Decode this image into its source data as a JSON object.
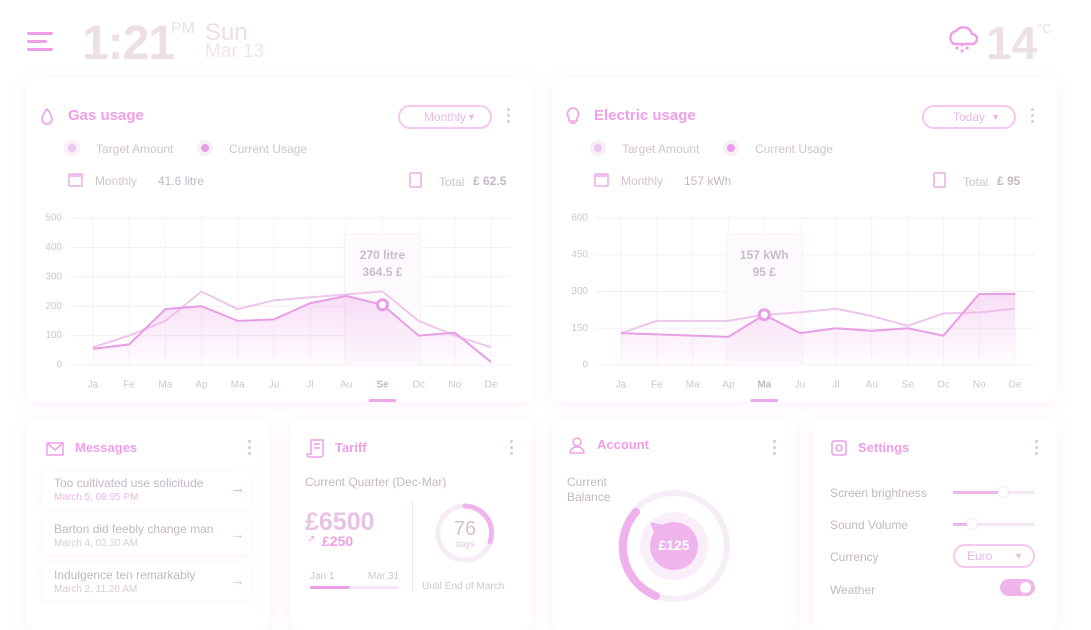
{
  "header": {
    "time": "1:21",
    "meridiem": "PM",
    "weekday": "Sun",
    "date": "Mar 13",
    "temperature": "14",
    "unit": "°C"
  },
  "chart_data": [
    {
      "type": "line",
      "title": "Gas usage",
      "period": "Monthly",
      "stats": {
        "monthly_label": "Monthly",
        "monthly_value": "41.6 litre",
        "total_label": "Total",
        "total_value": "£ 62.5"
      },
      "categories": [
        "Ja",
        "Fe",
        "Ma",
        "Ap",
        "Ma",
        "Ju",
        "Jl",
        "Au",
        "Se",
        "Oc",
        "No",
        "De"
      ],
      "ylim": [
        0,
        500
      ],
      "yticks": [
        0,
        100,
        200,
        300,
        400,
        500
      ],
      "grid": true,
      "series": [
        {
          "name": "Target Amount",
          "color": "#ecc6ec",
          "values": [
            60,
            100,
            150,
            250,
            190,
            220,
            230,
            240,
            250,
            150,
            100,
            60
          ]
        },
        {
          "name": "Current Usage",
          "color": "#e89ee4",
          "values": [
            55,
            70,
            190,
            200,
            150,
            155,
            210,
            235,
            205,
            100,
            110,
            10
          ]
        }
      ],
      "highlight": 8,
      "tooltip": [
        "270 litre",
        "364.5 £"
      ]
    },
    {
      "type": "line",
      "title": "Electric usage",
      "period": "Today",
      "stats": {
        "monthly_label": "Monthly",
        "monthly_value": "157 kWh",
        "total_label": "Total",
        "total_value": "£ 95"
      },
      "categories": [
        "Ja",
        "Fe",
        "Ma",
        "Ap",
        "Ma",
        "Ju",
        "Jl",
        "Au",
        "Se",
        "Oc",
        "No",
        "De"
      ],
      "ylim": [
        0,
        600
      ],
      "yticks": [
        0,
        150,
        300,
        450,
        600
      ],
      "grid": true,
      "series": [
        {
          "name": "Target Amount",
          "color": "#ecc6ec",
          "values": [
            130,
            180,
            180,
            180,
            205,
            215,
            230,
            200,
            160,
            210,
            215,
            230
          ]
        },
        {
          "name": "Current Usage",
          "color": "#e89ee4",
          "values": [
            130,
            125,
            120,
            115,
            205,
            130,
            150,
            140,
            150,
            120,
            290,
            290
          ]
        }
      ],
      "highlight": 4,
      "tooltip": [
        "157 kWh",
        "95 £"
      ]
    }
  ],
  "messages": {
    "title": "Messages",
    "items": [
      {
        "text": "Too cultivated use solicitude",
        "date": "March 5, 08.95 PM"
      },
      {
        "text": "Barton did feebly change man",
        "date": "March 4, 02.30 AM"
      },
      {
        "text": "Indulgence ten remarkably",
        "date": "March 2, 11.20 AM"
      }
    ]
  },
  "tariff": {
    "title": "Tariff",
    "subtitle": "Current Quarter (Dec-Mar)",
    "amount": "£6500",
    "change": "£250",
    "start": "Jan 1",
    "end": "Mar 31",
    "days": "76",
    "days_label": "days",
    "caption": "Until End of March"
  },
  "account": {
    "title": "Account",
    "label": "Current Balance",
    "balance": "£125"
  },
  "settings": {
    "title": "Settings",
    "items": [
      "Screen brightness",
      "Sound Volume",
      "Currency",
      "Weather"
    ],
    "currency": "Euro"
  }
}
